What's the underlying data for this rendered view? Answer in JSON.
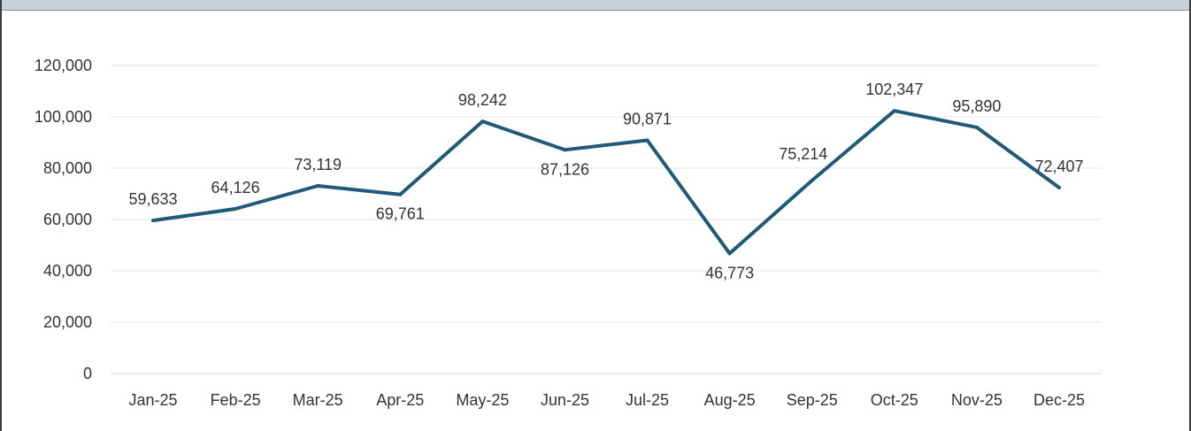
{
  "chart_data": {
    "type": "line",
    "title": "",
    "xlabel": "",
    "ylabel": "",
    "categories": [
      "Jan-25",
      "Feb-25",
      "Mar-25",
      "Apr-25",
      "May-25",
      "Jun-25",
      "Jul-25",
      "Aug-25",
      "Sep-25",
      "Oct-25",
      "Nov-25",
      "Dec-25"
    ],
    "series": [
      {
        "values": [
          59633,
          64126,
          73119,
          69761,
          98242,
          87126,
          90871,
          46773,
          75214,
          102347,
          95890,
          72407
        ],
        "labels": [
          "59,633",
          "64,126",
          "73,119",
          "69,761",
          "98,242",
          "87,126",
          "90,871",
          "46,773",
          "75,214",
          "102,347",
          "95,890",
          "72,407"
        ],
        "color": "#1f5a78"
      }
    ],
    "yticks": [
      "0",
      "20,000",
      "40,000",
      "60,000",
      "80,000",
      "100,000",
      "120,000"
    ],
    "ylim": [
      0,
      120000
    ],
    "grid": true,
    "legend": "none"
  }
}
